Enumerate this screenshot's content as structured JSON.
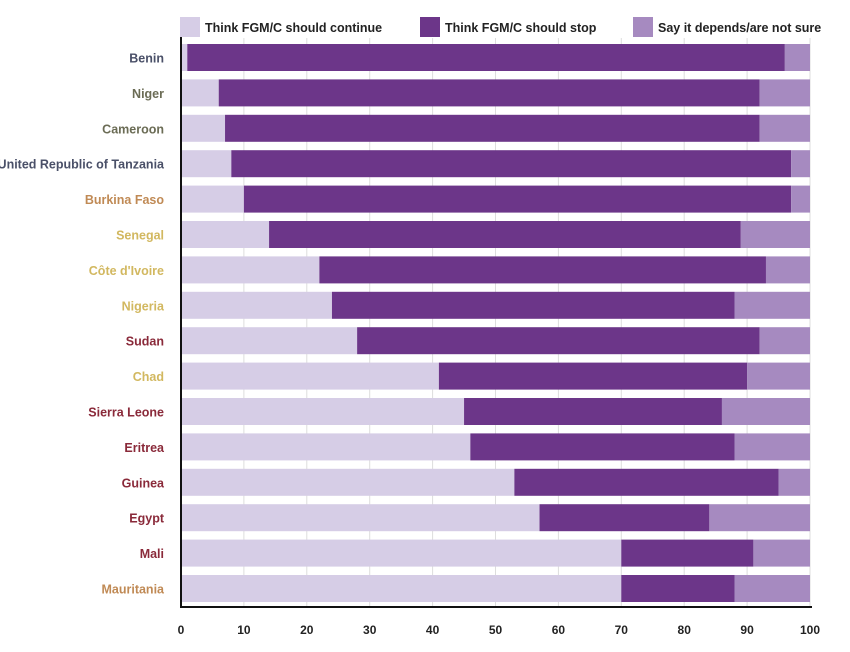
{
  "chart_data": {
    "type": "bar",
    "orientation": "horizontal",
    "stacked": true,
    "categories": [
      "Benin",
      "Niger",
      "Cameroon",
      "United Republic of Tanzania",
      "Burkina Faso",
      "Senegal",
      "Côte d'Ivoire",
      "Nigeria",
      "Sudan",
      "Chad",
      "Sierra Leone",
      "Eritrea",
      "Guinea",
      "Egypt",
      "Mali",
      "Mauritania"
    ],
    "category_colors": [
      "#4a5068",
      "#6b6c55",
      "#6b6c55",
      "#4a5068",
      "#c08a55",
      "#d2b860",
      "#d2b860",
      "#d2b860",
      "#8a2a3a",
      "#d2b860",
      "#8a2a3a",
      "#8a2a3a",
      "#8a2a3a",
      "#8a2a3a",
      "#8a2a3a",
      "#c08a55"
    ],
    "series": [
      {
        "name": "Think FGM/C should continue",
        "color": "#d6cde6",
        "values": [
          1,
          6,
          7,
          8,
          10,
          14,
          22,
          24,
          28,
          41,
          45,
          46,
          53,
          57,
          70,
          70
        ]
      },
      {
        "name": "Think FGM/C should stop",
        "color": "#6c3689",
        "values": [
          95,
          86,
          85,
          89,
          87,
          75,
          71,
          64,
          64,
          49,
          41,
          42,
          42,
          27,
          21,
          18
        ]
      },
      {
        "name": "Say it depends/are not sure",
        "color": "#a68ac0",
        "values": [
          4,
          8,
          8,
          3,
          3,
          11,
          7,
          12,
          8,
          10,
          14,
          12,
          5,
          16,
          9,
          12
        ]
      }
    ],
    "xlim": [
      0,
      100
    ],
    "xticks": [
      "0",
      "10",
      "20",
      "30",
      "40",
      "50",
      "60",
      "70",
      "80",
      "90",
      "100"
    ],
    "grid": true,
    "legend": "top"
  }
}
